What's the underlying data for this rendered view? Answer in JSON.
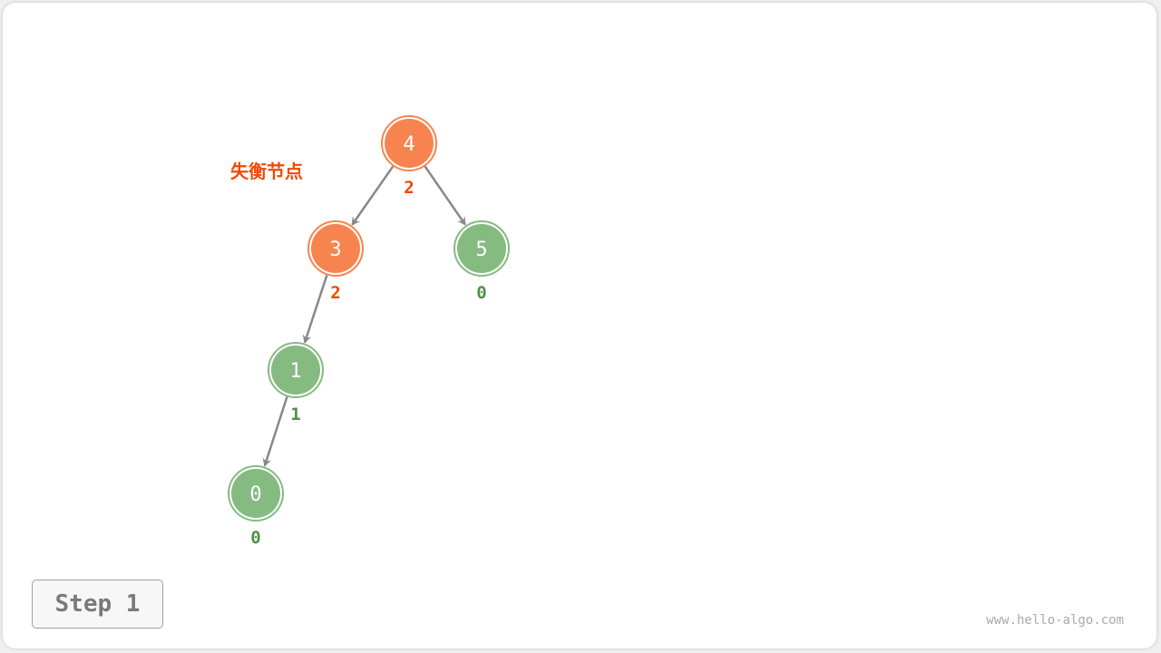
{
  "label": "失衡节点",
  "step_label": "Step 1",
  "watermark": "www.hello-algo.com",
  "colors": {
    "unbalanced_fill": "#f7844f",
    "unbalanced_text": "#f04a00",
    "balanced_fill": "#85bb80",
    "balanced_text": "#4e9144",
    "edge": "#888888"
  },
  "nodes": [
    {
      "id": "4",
      "balance": "2",
      "unbalanced": true
    },
    {
      "id": "3",
      "balance": "2",
      "unbalanced": true
    },
    {
      "id": "5",
      "balance": "0",
      "unbalanced": false
    },
    {
      "id": "1",
      "balance": "1",
      "unbalanced": false
    },
    {
      "id": "0",
      "balance": "0",
      "unbalanced": false
    }
  ],
  "edges": [
    [
      "4",
      "3"
    ],
    [
      "4",
      "5"
    ],
    [
      "3",
      "1"
    ],
    [
      "1",
      "0"
    ]
  ]
}
